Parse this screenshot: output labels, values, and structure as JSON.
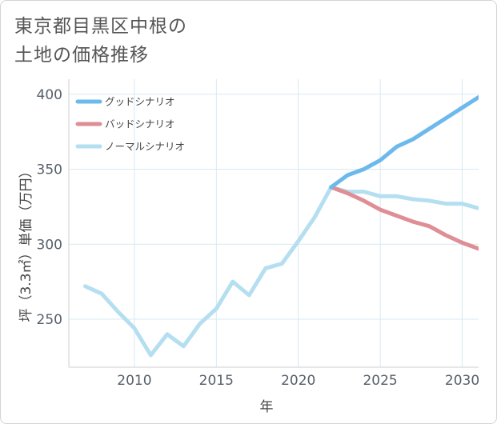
{
  "title_lines": [
    "東京都目黒区中根の",
    "土地の価格推移"
  ],
  "chart_data": {
    "type": "line",
    "xlabel": "年",
    "ylabel": "坪（3.3㎡）単価（万円）",
    "xlim": [
      2006,
      2031
    ],
    "ylim": [
      218,
      410
    ],
    "xticks": [
      2010,
      2015,
      2020,
      2025,
      2030
    ],
    "yticks": [
      250,
      300,
      350,
      400
    ],
    "grid": true,
    "legend_position": "top-left",
    "series": [
      {
        "name": "グッドシナリオ",
        "color": "#6cb9ec",
        "points": [
          [
            2022,
            338
          ],
          [
            2023,
            346
          ],
          [
            2024,
            350
          ],
          [
            2025,
            356
          ],
          [
            2026,
            365
          ],
          [
            2027,
            370
          ],
          [
            2028,
            377
          ],
          [
            2029,
            384
          ],
          [
            2030,
            391
          ],
          [
            2031,
            398
          ]
        ]
      },
      {
        "name": "バッドシナリオ",
        "color": "#df8e95",
        "points": [
          [
            2022,
            338
          ],
          [
            2023,
            334
          ],
          [
            2024,
            329
          ],
          [
            2025,
            323
          ],
          [
            2026,
            319
          ],
          [
            2027,
            315
          ],
          [
            2028,
            312
          ],
          [
            2029,
            306
          ],
          [
            2030,
            301
          ],
          [
            2031,
            297
          ]
        ]
      },
      {
        "name": "ノーマルシナリオ",
        "color": "#b5dff0",
        "points": [
          [
            2007,
            272
          ],
          [
            2008,
            267
          ],
          [
            2009,
            255
          ],
          [
            2010,
            244
          ],
          [
            2011,
            226
          ],
          [
            2012,
            240
          ],
          [
            2013,
            232
          ],
          [
            2014,
            247
          ],
          [
            2015,
            257
          ],
          [
            2016,
            275
          ],
          [
            2017,
            266
          ],
          [
            2018,
            284
          ],
          [
            2019,
            287
          ],
          [
            2020,
            302
          ],
          [
            2021,
            318
          ],
          [
            2022,
            338
          ],
          [
            2023,
            335
          ],
          [
            2024,
            335
          ],
          [
            2025,
            332
          ],
          [
            2026,
            332
          ],
          [
            2027,
            330
          ],
          [
            2028,
            329
          ],
          [
            2029,
            327
          ],
          [
            2030,
            327
          ],
          [
            2031,
            324
          ]
        ]
      }
    ]
  }
}
